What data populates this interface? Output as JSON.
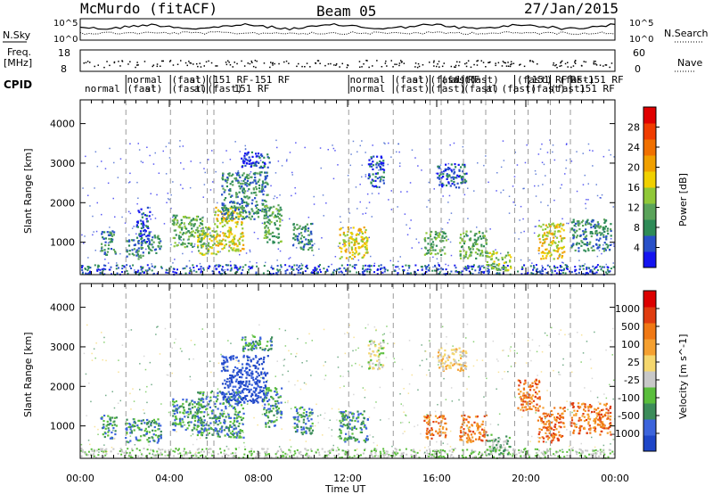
{
  "header": {
    "station": "McMurdo (fitACF)",
    "beam": "Beam 05",
    "date": "27/Jan/2015"
  },
  "strip_labels": {
    "left_nsky": "N.Sky",
    "left_nsky_top": "10^5",
    "left_nsky_bottom": "10^0",
    "right_nsky_top": "10^5",
    "right_nsky_bottom": "10^0",
    "right_nsearch": "N.Search",
    "left_freq": "Freq.",
    "left_freq_unit": "[MHz]",
    "left_freq_top": "18",
    "left_freq_bottom": "8",
    "right_freq_top": "60",
    "right_freq_bottom": "0",
    "right_nave": "Nave",
    "cpid": "CPID"
  },
  "cpid_labels": [
    {
      "t": 0.2,
      "row": 2,
      "text": "normal"
    },
    {
      "t": 2.1,
      "row": 1,
      "text": "normal"
    },
    {
      "t": 2.1,
      "row": 2,
      "text": "(fast)"
    },
    {
      "t": 2.9,
      "row": 2,
      "text": "al"
    },
    {
      "t": 4.1,
      "row": 1,
      "text": "(fast)"
    },
    {
      "t": 4.9,
      "row": 1,
      "text": "al"
    },
    {
      "t": 4.1,
      "row": 2,
      "text": "(fast)"
    },
    {
      "t": 5.1,
      "row": 2,
      "text": "al"
    },
    {
      "t": 5.7,
      "row": 1,
      "text": "(151 RF-151 RF"
    },
    {
      "t": 5.7,
      "row": 2,
      "text": "(fast)"
    },
    {
      "t": 6.9,
      "row": 2,
      "text": "151 RF"
    },
    {
      "t": 12.1,
      "row": 1,
      "text": "normal"
    },
    {
      "t": 12.1,
      "row": 2,
      "text": "normal"
    },
    {
      "t": 14.1,
      "row": 1,
      "text": "(fast)"
    },
    {
      "t": 14.9,
      "row": 1,
      "text": "al"
    },
    {
      "t": 14.1,
      "row": 2,
      "text": "(fast)"
    },
    {
      "t": 15.7,
      "row": 1,
      "text": "(fast)"
    },
    {
      "t": 15.7,
      "row": 2,
      "text": "(fast)"
    },
    {
      "t": 16.2,
      "row": 1,
      "text": "(fast)"
    },
    {
      "t": 16.6,
      "row": 1,
      "text": "al RF"
    },
    {
      "t": 17.2,
      "row": 1,
      "text": "(fast)"
    },
    {
      "t": 17.2,
      "row": 2,
      "text": "(fast)"
    },
    {
      "t": 18.9,
      "row": 2,
      "text": "(fast)"
    },
    {
      "t": 18.2,
      "row": 2,
      "text": "al"
    },
    {
      "t": 19.6,
      "row": 1,
      "text": "(fast)"
    },
    {
      "t": 20.0,
      "row": 1,
      "text": "(151 RF"
    },
    {
      "t": 20.2,
      "row": 2,
      "text": "(fast)"
    },
    {
      "t": 21.1,
      "row": 2,
      "text": "(fast)"
    },
    {
      "t": 21.5,
      "row": 1,
      "text": "(fast)"
    },
    {
      "t": 22.0,
      "row": 1,
      "text": "RF-151 RF"
    },
    {
      "t": 22.4,
      "row": 2,
      "text": "151 RF"
    }
  ],
  "mode_change_times_h": [
    2.05,
    4.05,
    5.7,
    6.0,
    12.05,
    14.05,
    15.7,
    16.2,
    17.2,
    18.2,
    19.5,
    20.1,
    21.1,
    22.0
  ],
  "chart_data": [
    {
      "type": "heatmap",
      "name": "power",
      "ylabel": "Slant Range [km]",
      "ylim": [
        180,
        4600
      ],
      "yticks": [
        1000,
        2000,
        3000,
        4000
      ],
      "xlim_h": [
        0,
        24
      ],
      "colorbar": {
        "label": "Power [dB]",
        "ticks": [
          "4",
          "8",
          "12",
          "16",
          "20",
          "24",
          "28"
        ],
        "colors": [
          "#1414f0",
          "#2850c8",
          "#2e8b57",
          "#5aa35a",
          "#90c838",
          "#f0d000",
          "#f0a000",
          "#f07000",
          "#f03c00",
          "#e00000"
        ]
      },
      "patches": [
        {
          "t0": 0.9,
          "t1": 1.6,
          "r0": 700,
          "r1": 1300,
          "level": 2
        },
        {
          "t0": 2.0,
          "t1": 2.8,
          "r0": 600,
          "r1": 1100,
          "level": 2
        },
        {
          "t0": 2.5,
          "t1": 3.1,
          "r0": 1000,
          "r1": 1900,
          "level": 1
        },
        {
          "t0": 3.0,
          "t1": 3.6,
          "r0": 700,
          "r1": 1200,
          "level": 2
        },
        {
          "t0": 4.1,
          "t1": 5.5,
          "r0": 900,
          "r1": 1700,
          "level": 3
        },
        {
          "t0": 5.2,
          "t1": 6.2,
          "r0": 700,
          "r1": 1400,
          "level": 4
        },
        {
          "t0": 6.0,
          "t1": 7.3,
          "r0": 800,
          "r1": 1900,
          "level": 5
        },
        {
          "t0": 6.3,
          "t1": 8.4,
          "r0": 1600,
          "r1": 2800,
          "level": 2
        },
        {
          "t0": 7.2,
          "t1": 8.6,
          "r0": 2900,
          "r1": 3300,
          "level": 1
        },
        {
          "t0": 8.2,
          "t1": 9.0,
          "r0": 1000,
          "r1": 2000,
          "level": 3
        },
        {
          "t0": 9.5,
          "t1": 10.4,
          "r0": 800,
          "r1": 1500,
          "level": 2
        },
        {
          "t0": 11.6,
          "t1": 12.9,
          "r0": 600,
          "r1": 1400,
          "level": 5
        },
        {
          "t0": 12.9,
          "t1": 13.6,
          "r0": 2400,
          "r1": 3200,
          "level": 1
        },
        {
          "t0": 15.4,
          "t1": 16.4,
          "r0": 700,
          "r1": 1300,
          "level": 3
        },
        {
          "t0": 16.0,
          "t1": 17.3,
          "r0": 2400,
          "r1": 3000,
          "level": 1
        },
        {
          "t0": 17.0,
          "t1": 18.2,
          "r0": 600,
          "r1": 1300,
          "level": 3
        },
        {
          "t0": 18.2,
          "t1": 19.3,
          "r0": 300,
          "r1": 800,
          "level": 4
        },
        {
          "t0": 20.5,
          "t1": 21.7,
          "r0": 600,
          "r1": 1500,
          "level": 5
        },
        {
          "t0": 22.0,
          "t1": 23.8,
          "r0": 800,
          "r1": 1600,
          "level": 2
        }
      ]
    },
    {
      "type": "heatmap",
      "name": "velocity",
      "ylabel": "Slant Range [km]",
      "xlabel": "Time UT",
      "ylim": [
        180,
        4600
      ],
      "yticks": [
        1000,
        2000,
        3000,
        4000
      ],
      "xticks": [
        "00:00",
        "04:00",
        "08:00",
        "12:00",
        "16:00",
        "20:00",
        "00:00"
      ],
      "xlim_h": [
        0,
        24
      ],
      "colorbar": {
        "label": "Velocity [m s^-1]",
        "ticks": [
          "1000",
          "500",
          "100",
          "25",
          "-25",
          "-100",
          "-500",
          "-1000"
        ],
        "colors": [
          "#1e46c8",
          "#3c64dc",
          "#3c8c5a",
          "#5abe3c",
          "#c8c8c8",
          "#f5d76e",
          "#f5a030",
          "#f07814",
          "#e03c10",
          "#dc0000"
        ]
      },
      "patches": [
        {
          "t0": 0.9,
          "t1": 1.6,
          "r0": 700,
          "r1": 1300,
          "level": 2
        },
        {
          "t0": 2.0,
          "t1": 3.6,
          "r0": 600,
          "r1": 1200,
          "level": 2
        },
        {
          "t0": 4.1,
          "t1": 5.5,
          "r0": 900,
          "r1": 1700,
          "level": 2
        },
        {
          "t0": 5.2,
          "t1": 7.3,
          "r0": 700,
          "r1": 1900,
          "level": 2
        },
        {
          "t0": 6.3,
          "t1": 8.4,
          "r0": 1600,
          "r1": 2800,
          "level": 0
        },
        {
          "t0": 7.2,
          "t1": 8.6,
          "r0": 2900,
          "r1": 3300,
          "level": 2
        },
        {
          "t0": 8.2,
          "t1": 9.0,
          "r0": 1000,
          "r1": 2000,
          "level": 2
        },
        {
          "t0": 9.5,
          "t1": 10.4,
          "r0": 800,
          "r1": 1500,
          "level": 2
        },
        {
          "t0": 11.6,
          "t1": 12.9,
          "r0": 600,
          "r1": 1400,
          "level": 2
        },
        {
          "t0": 12.9,
          "t1": 13.6,
          "r0": 2400,
          "r1": 3200,
          "level": 4
        },
        {
          "t0": 15.4,
          "t1": 16.4,
          "r0": 700,
          "r1": 1300,
          "level": 7
        },
        {
          "t0": 16.0,
          "t1": 17.3,
          "r0": 2400,
          "r1": 3000,
          "level": 5
        },
        {
          "t0": 17.0,
          "t1": 18.2,
          "r0": 600,
          "r1": 1300,
          "level": 7
        },
        {
          "t0": 18.2,
          "t1": 19.3,
          "r0": 300,
          "r1": 800,
          "level": 3
        },
        {
          "t0": 19.6,
          "t1": 20.6,
          "r0": 1400,
          "r1": 2200,
          "level": 7
        },
        {
          "t0": 20.5,
          "t1": 21.7,
          "r0": 600,
          "r1": 1500,
          "level": 7
        },
        {
          "t0": 22.0,
          "t1": 23.8,
          "r0": 800,
          "r1": 1600,
          "level": 7
        }
      ]
    }
  ]
}
